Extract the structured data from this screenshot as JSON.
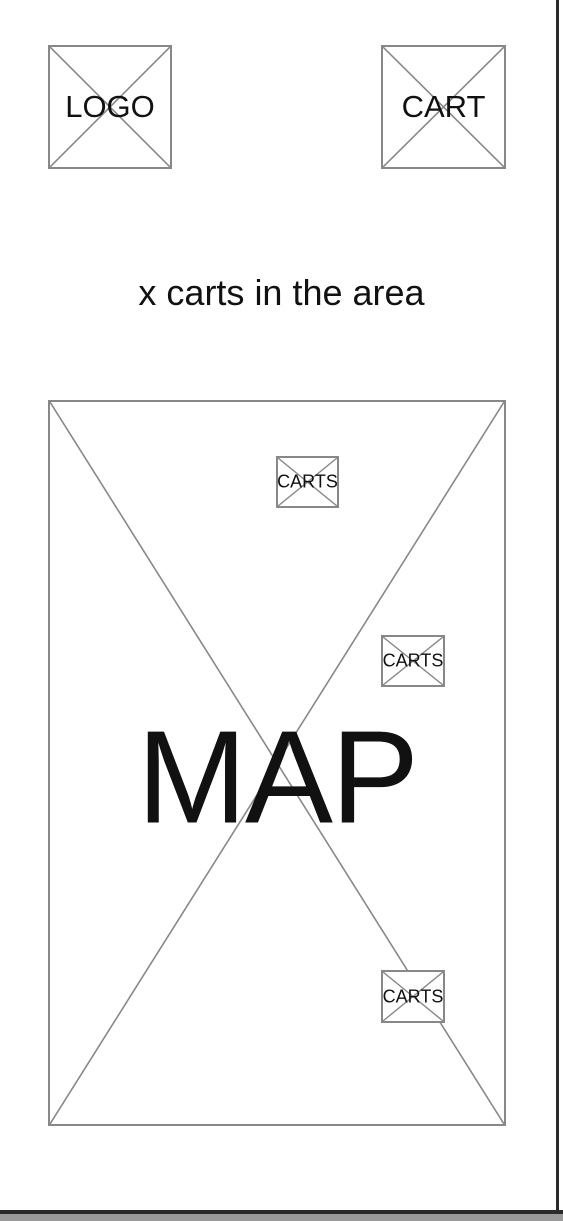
{
  "header": {
    "logo_label": "LOGO",
    "cart_label": "CART"
  },
  "headline": "x carts in the area",
  "map": {
    "label": "MAP",
    "markers": [
      {
        "label": "CARTS"
      },
      {
        "label": "CARTS"
      },
      {
        "label": "CARTS"
      }
    ]
  },
  "colors": {
    "placeholder_stroke": "#888888",
    "text": "#111111",
    "border": "#2a2a2a"
  }
}
